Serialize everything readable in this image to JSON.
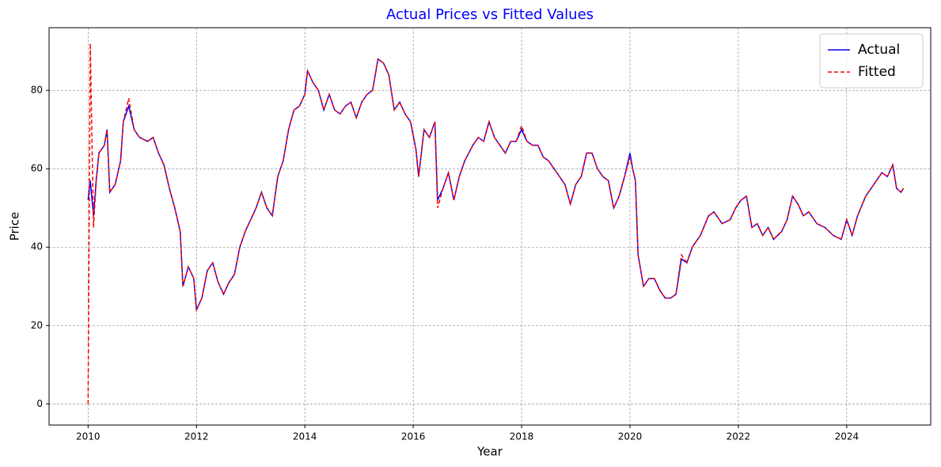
{
  "chart_data": {
    "type": "line",
    "title": "Actual Prices vs Fitted Values",
    "title_color": "#0000ff",
    "x_label": "Year",
    "y_label": "Price",
    "x": [
      2010.0,
      2010.04,
      2010.1,
      2010.15,
      2010.2,
      2010.3,
      2010.35,
      2010.4,
      2010.5,
      2010.6,
      2010.65,
      2010.75,
      2010.85,
      2010.95,
      2011.1,
      2011.2,
      2011.3,
      2011.4,
      2011.5,
      2011.6,
      2011.7,
      2011.75,
      2011.85,
      2011.95,
      2012.0,
      2012.1,
      2012.2,
      2012.3,
      2012.4,
      2012.5,
      2012.6,
      2012.7,
      2012.8,
      2012.9,
      2013.0,
      2013.1,
      2013.2,
      2013.3,
      2013.4,
      2013.5,
      2013.6,
      2013.7,
      2013.8,
      2013.9,
      2014.0,
      2014.05,
      2014.15,
      2014.25,
      2014.35,
      2014.45,
      2014.55,
      2014.65,
      2014.75,
      2014.85,
      2014.95,
      2015.05,
      2015.15,
      2015.25,
      2015.35,
      2015.45,
      2015.55,
      2015.65,
      2015.75,
      2015.85,
      2015.95,
      2016.05,
      2016.1,
      2016.2,
      2016.3,
      2016.4,
      2016.45,
      2016.55,
      2016.65,
      2016.75,
      2016.85,
      2016.95,
      2017.1,
      2017.2,
      2017.3,
      2017.4,
      2017.5,
      2017.6,
      2017.7,
      2017.8,
      2017.9,
      2018.0,
      2018.1,
      2018.2,
      2018.3,
      2018.4,
      2018.5,
      2018.6,
      2018.7,
      2018.8,
      2018.9,
      2019.0,
      2019.1,
      2019.2,
      2019.3,
      2019.4,
      2019.5,
      2019.6,
      2019.7,
      2019.8,
      2019.9,
      2020.0,
      2020.05,
      2020.1,
      2020.15,
      2020.25,
      2020.35,
      2020.45,
      2020.55,
      2020.65,
      2020.75,
      2020.85,
      2020.95,
      2021.05,
      2021.15,
      2021.3,
      2021.45,
      2021.55,
      2021.7,
      2021.85,
      2021.95,
      2022.05,
      2022.15,
      2022.25,
      2022.35,
      2022.45,
      2022.55,
      2022.65,
      2022.8,
      2022.9,
      2023.0,
      2023.1,
      2023.2,
      2023.3,
      2023.45,
      2023.6,
      2023.75,
      2023.9,
      2024.0,
      2024.1,
      2024.2,
      2024.35,
      2024.5,
      2024.65,
      2024.75,
      2024.85,
      2024.92,
      2025.0,
      2025.05
    ],
    "series": [
      {
        "name": "Actual",
        "color": "#0000ff",
        "dashed": false,
        "values": [
          52,
          57,
          48,
          57,
          64,
          66,
          70,
          54,
          56,
          62,
          72,
          76,
          70,
          68,
          67,
          68,
          64,
          61,
          55,
          50,
          44,
          30,
          35,
          32,
          24,
          27,
          34,
          36,
          31,
          28,
          31,
          33,
          40,
          44,
          47,
          50,
          54,
          50,
          48,
          58,
          62,
          70,
          75,
          76,
          79,
          85,
          82,
          80,
          75,
          79,
          75,
          74,
          76,
          77,
          73,
          77,
          79,
          80,
          88,
          87,
          84,
          75,
          77,
          74,
          72,
          65,
          58,
          70,
          68,
          72,
          52,
          55,
          59,
          52,
          58,
          62,
          66,
          68,
          67,
          72,
          68,
          66,
          64,
          67,
          67,
          70,
          67,
          66,
          66,
          63,
          62,
          60,
          58,
          56,
          51,
          56,
          58,
          64,
          64,
          60,
          58,
          57,
          50,
          53,
          58,
          64,
          60,
          57,
          38,
          30,
          32,
          32,
          29,
          27,
          27,
          28,
          37,
          36,
          40,
          43,
          48,
          49,
          46,
          47,
          50,
          52,
          53,
          45,
          46,
          43,
          45,
          42,
          44,
          47,
          53,
          51,
          48,
          49,
          46,
          45,
          43,
          42,
          47,
          43,
          48,
          53,
          56,
          59,
          58,
          61,
          55,
          54,
          55
        ]
      },
      {
        "name": "Fitted",
        "color": "#ff0000",
        "dashed": true,
        "values": [
          0,
          92,
          45,
          57,
          64,
          66,
          70,
          54,
          56,
          62,
          72,
          78,
          70,
          68,
          67,
          68,
          64,
          61,
          55,
          50,
          44,
          30,
          35,
          32,
          24,
          27,
          34,
          36,
          31,
          28,
          31,
          33,
          40,
          44,
          47,
          50,
          54,
          50,
          48,
          58,
          62,
          70,
          75,
          76,
          79,
          85,
          82,
          80,
          75,
          79,
          75,
          74,
          76,
          77,
          73,
          77,
          79,
          80,
          88,
          87,
          84,
          75,
          77,
          74,
          72,
          65,
          58,
          70,
          68,
          72,
          50,
          55,
          59,
          52,
          58,
          62,
          66,
          68,
          67,
          72,
          68,
          66,
          64,
          67,
          67,
          71,
          67,
          66,
          66,
          63,
          62,
          60,
          58,
          56,
          51,
          56,
          58,
          64,
          64,
          60,
          58,
          57,
          50,
          53,
          58,
          63,
          60,
          57,
          38,
          30,
          32,
          32,
          29,
          27,
          27,
          28,
          38,
          36,
          40,
          43,
          48,
          49,
          46,
          47,
          50,
          52,
          53,
          45,
          46,
          43,
          45,
          42,
          44,
          47,
          53,
          51,
          48,
          49,
          46,
          45,
          43,
          42,
          47,
          43,
          48,
          53,
          56,
          59,
          58,
          61,
          55,
          54,
          55
        ]
      }
    ],
    "xlim": [
      2009.28,
      2025.55
    ],
    "xticks": [
      2010,
      2012,
      2014,
      2016,
      2018,
      2020,
      2022,
      2024
    ],
    "ylim": [
      -5.4,
      96
    ],
    "yticks": [
      0,
      20,
      40,
      60,
      80
    ],
    "grid": true,
    "legend": "upper right"
  }
}
